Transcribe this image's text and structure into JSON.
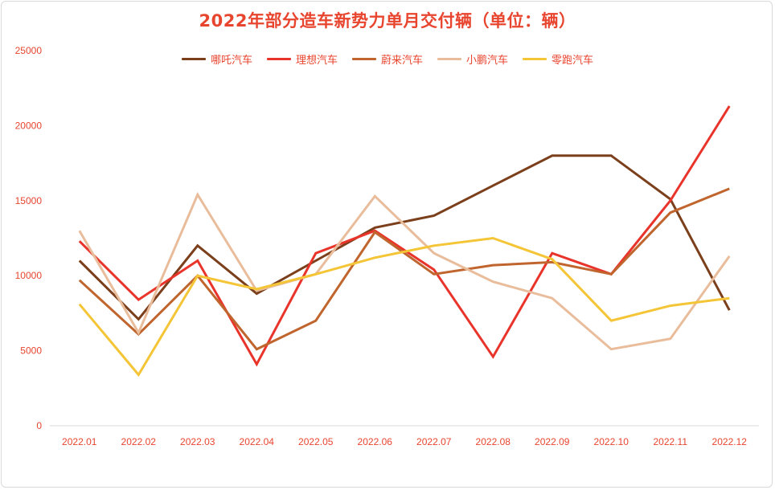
{
  "chart_data": {
    "type": "line",
    "title": "2022年部分造车新势力单月交付辆（单位：辆）",
    "categories": [
      "2022.01",
      "2022.02",
      "2022.03",
      "2022.04",
      "2022.05",
      "2022.06",
      "2022.07",
      "2022.08",
      "2022.09",
      "2022.10",
      "2022.11",
      "2022.12"
    ],
    "ylim": [
      0,
      25000
    ],
    "yticks": [
      0,
      5000,
      10000,
      15000,
      20000,
      25000
    ],
    "grid": false,
    "legend_position": "top",
    "series": [
      {
        "name": "哪吒汽车",
        "color": "#7b3f1c",
        "values": [
          11000,
          7100,
          12000,
          8800,
          11000,
          13200,
          14000,
          16000,
          18000,
          18000,
          15100,
          7700
        ]
      },
      {
        "name": "理想汽车",
        "color": "#e8342a",
        "values": [
          12300,
          8400,
          11000,
          4100,
          11500,
          13000,
          10400,
          4600,
          11500,
          10100,
          15000,
          21300
        ]
      },
      {
        "name": "蔚来汽车",
        "color": "#c0652e",
        "values": [
          9700,
          6100,
          10000,
          5100,
          7000,
          12900,
          10100,
          10700,
          10900,
          10100,
          14200,
          15800
        ]
      },
      {
        "name": "小鹏汽车",
        "color": "#e9bd9b",
        "values": [
          13000,
          6200,
          15400,
          9000,
          10100,
          15300,
          11500,
          9600,
          8500,
          5100,
          5800,
          11300
        ]
      },
      {
        "name": "零跑汽车",
        "color": "#f4c536",
        "values": [
          8100,
          3400,
          10000,
          9100,
          10100,
          11200,
          12000,
          12500,
          11100,
          7000,
          8000,
          8500
        ]
      }
    ]
  }
}
